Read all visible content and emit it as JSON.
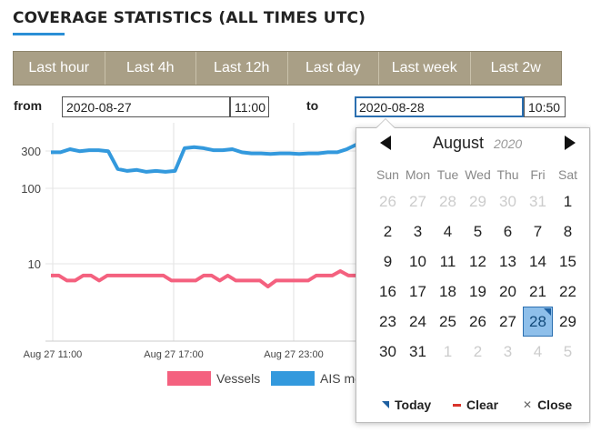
{
  "header": {
    "title": "COVERAGE STATISTICS (ALL TIMES UTC)"
  },
  "ranges": [
    "Last hour",
    "Last 4h",
    "Last 12h",
    "Last day",
    "Last week",
    "Last 2w"
  ],
  "filters": {
    "from_label": "from",
    "from_date": "2020-08-27",
    "from_time": "11:00",
    "to_label": "to",
    "to_date": "2020-08-28",
    "to_time": "10:50"
  },
  "colors": {
    "accent": "#2b8fd6",
    "range_bar": "#a99f86",
    "vessels": "#f4617f",
    "ais": "#3399dd"
  },
  "chart_data": {
    "type": "line",
    "y_scale": "log",
    "y_ticks": [
      "300",
      "100",
      "10"
    ],
    "x_ticks": [
      "Aug 27 11:00",
      "Aug 27 17:00",
      "Aug 27 23:00"
    ],
    "series": [
      {
        "name": "Vessels",
        "values": [
          7,
          7,
          6,
          6,
          7,
          7,
          6,
          7,
          7,
          7,
          7,
          7,
          7,
          7,
          7,
          6,
          6,
          6,
          6,
          7,
          7,
          6,
          7,
          6,
          6,
          6,
          6,
          5,
          6,
          6,
          6,
          6,
          6,
          7,
          7,
          7,
          8,
          7,
          7
        ]
      },
      {
        "name": "AIS messages",
        "values": [
          300,
          300,
          330,
          310,
          320,
          320,
          310,
          180,
          170,
          175,
          165,
          170,
          165,
          170,
          340,
          350,
          340,
          320,
          320,
          330,
          300,
          290,
          290,
          285,
          290,
          290,
          285,
          290,
          290,
          300,
          300,
          330,
          380
        ]
      }
    ],
    "legend": [
      "Vessels",
      "AIS messages"
    ]
  },
  "calendar": {
    "month": "August",
    "year": "2020",
    "weekdays": [
      "Sun",
      "Mon",
      "Tue",
      "Wed",
      "Thu",
      "Fri",
      "Sat"
    ],
    "days": [
      {
        "d": "26",
        "m": true
      },
      {
        "d": "27",
        "m": true
      },
      {
        "d": "28",
        "m": true
      },
      {
        "d": "29",
        "m": true
      },
      {
        "d": "30",
        "m": true
      },
      {
        "d": "31",
        "m": true
      },
      {
        "d": "1"
      },
      {
        "d": "2"
      },
      {
        "d": "3"
      },
      {
        "d": "4"
      },
      {
        "d": "5"
      },
      {
        "d": "6"
      },
      {
        "d": "7"
      },
      {
        "d": "8"
      },
      {
        "d": "9"
      },
      {
        "d": "10"
      },
      {
        "d": "11"
      },
      {
        "d": "12"
      },
      {
        "d": "13"
      },
      {
        "d": "14"
      },
      {
        "d": "15"
      },
      {
        "d": "16"
      },
      {
        "d": "17"
      },
      {
        "d": "18"
      },
      {
        "d": "19"
      },
      {
        "d": "20"
      },
      {
        "d": "21"
      },
      {
        "d": "22"
      },
      {
        "d": "23"
      },
      {
        "d": "24"
      },
      {
        "d": "25"
      },
      {
        "d": "26"
      },
      {
        "d": "27"
      },
      {
        "d": "28",
        "s": true
      },
      {
        "d": "29"
      },
      {
        "d": "30"
      },
      {
        "d": "31"
      },
      {
        "d": "1",
        "m": true
      },
      {
        "d": "2",
        "m": true
      },
      {
        "d": "3",
        "m": true
      },
      {
        "d": "4",
        "m": true
      },
      {
        "d": "5",
        "m": true
      }
    ],
    "today_label": "Today",
    "clear_label": "Clear",
    "close_label": "Close"
  }
}
